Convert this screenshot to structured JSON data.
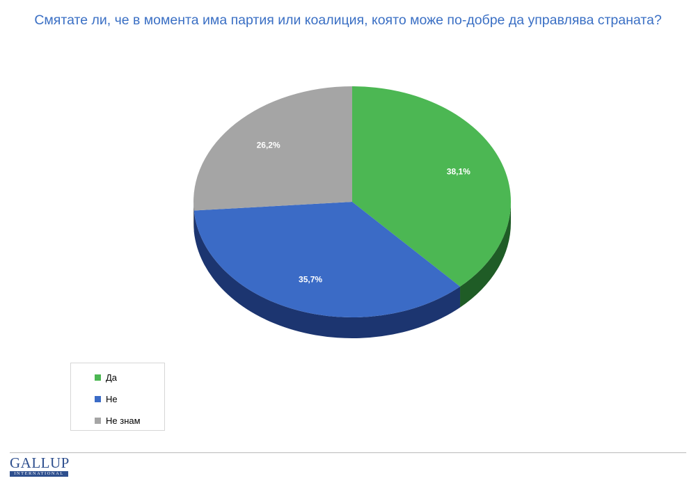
{
  "title": "Смятате ли, че в момента има партия или коалиция, която може по-добре да управлява страната?",
  "chart_data": {
    "type": "pie",
    "title": "Смятате ли, че в момента има партия или коалиция, която може по-добре да управлява страната?",
    "categories": [
      "Да",
      "Не",
      "Не знам"
    ],
    "values": [
      38.1,
      35.7,
      26.2
    ],
    "labels": [
      "38,1%",
      "35,7%",
      "26,2%"
    ],
    "colors": [
      "#4cb753",
      "#3b6bc6",
      "#a5a5a5"
    ],
    "side_colors": [
      "#1f5c26",
      "#1c3570",
      "#5c5c5c"
    ],
    "legend_position": "bottom-left",
    "style": "3d"
  },
  "legend": {
    "items": [
      {
        "label": "Да",
        "color": "#4cb753"
      },
      {
        "label": "Не",
        "color": "#3b6bc6"
      },
      {
        "label": "Не знам",
        "color": "#a5a5a5"
      }
    ]
  },
  "logo": {
    "main": "GALLUP",
    "sub": "INTERNATIONAL"
  }
}
